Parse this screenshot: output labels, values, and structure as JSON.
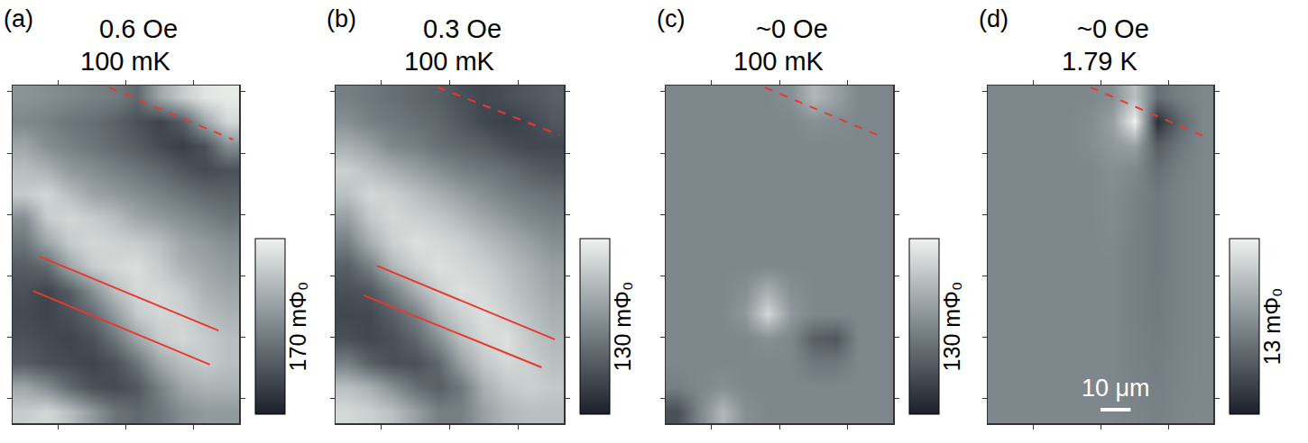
{
  "chart_data": [
    {
      "type": "heatmap",
      "panel": "(a)",
      "title": "0.6 Oe",
      "subtitle": "100 mK",
      "x": [
        3.75,
        11.25,
        18.75,
        26.25,
        33.75,
        41.25,
        48.75,
        56.25,
        63.75,
        71.25
      ],
      "y": [
        3.93,
        11.79,
        19.64,
        27.5,
        35.36,
        43.21,
        51.07,
        58.93,
        66.79,
        74.64,
        82.5,
        90.36,
        98.21,
        106.07
      ],
      "z": [
        [
          140,
          150,
          130,
          100,
          70,
          60,
          70,
          90,
          100,
          100
        ],
        [
          110,
          90,
          60,
          40,
          35,
          45,
          80,
          110,
          120,
          120
        ],
        [
          50,
          40,
          35,
          30,
          40,
          70,
          110,
          130,
          140,
          130
        ],
        [
          40,
          35,
          30,
          40,
          70,
          110,
          140,
          150,
          140,
          130
        ],
        [
          35,
          30,
          40,
          60,
          100,
          140,
          150,
          145,
          130,
          120
        ],
        [
          40,
          30,
          50,
          90,
          130,
          150,
          150,
          140,
          120,
          110
        ],
        [
          50,
          60,
          110,
          140,
          150,
          155,
          140,
          120,
          110,
          100
        ],
        [
          70,
          110,
          140,
          150,
          145,
          140,
          130,
          110,
          100,
          90
        ],
        [
          90,
          140,
          150,
          140,
          130,
          110,
          100,
          90,
          80,
          70
        ],
        [
          140,
          150,
          130,
          110,
          100,
          90,
          80,
          70,
          60,
          55
        ],
        [
          130,
          120,
          100,
          90,
          80,
          70,
          60,
          45,
          35,
          40
        ],
        [
          110,
          90,
          80,
          70,
          60,
          50,
          35,
          25,
          40,
          90
        ],
        [
          85,
          80,
          70,
          65,
          55,
          40,
          30,
          50,
          110,
          150
        ],
        [
          95,
          90,
          85,
          80,
          75,
          60,
          110,
          140,
          160,
          165
        ]
      ],
      "zlim": [
        0,
        170
      ],
      "colorbar_label": "170 mΦ₀",
      "colors": [
        "#1c2029",
        "#7d878c",
        "#eef1ee"
      ],
      "xlim": [
        0,
        75
      ],
      "ylim": [
        0,
        110
      ],
      "xticks": [
        15,
        37.5,
        60
      ],
      "yticks": [
        8,
        28,
        48,
        68,
        88,
        108
      ],
      "tick_labels": false,
      "guides": [
        {
          "x": [
            32,
            73
          ],
          "y": [
            109.4,
            92.4
          ],
          "color": "#e8382f",
          "line_style": "dashed"
        },
        {
          "x": [
            8.9,
            68.2
          ],
          "y": [
            54.3,
            30.2
          ],
          "color": "#e8382f",
          "line_style": "solid"
        },
        {
          "x": [
            6.8,
            65.3
          ],
          "y": [
            43.1,
            19.1
          ],
          "color": "#e8382f",
          "line_style": "solid"
        }
      ]
    },
    {
      "type": "heatmap",
      "panel": "(b)",
      "title": "0.3 Oe",
      "subtitle": "100 mK",
      "x": [
        3.75,
        11.25,
        18.75,
        26.25,
        33.75,
        41.25,
        48.75,
        56.25,
        63.75,
        71.25
      ],
      "y": [
        3.93,
        11.79,
        19.64,
        27.5,
        35.36,
        43.21,
        51.07,
        58.93,
        66.79,
        74.64,
        82.5,
        90.36,
        98.21,
        106.07
      ],
      "z": [
        [
          115,
          110,
          100,
          80,
          60,
          60,
          80,
          95,
          100,
          100
        ],
        [
          100,
          90,
          70,
          50,
          40,
          55,
          90,
          105,
          110,
          105
        ],
        [
          60,
          40,
          30,
          30,
          45,
          80,
          105,
          115,
          110,
          100
        ],
        [
          30,
          25,
          30,
          45,
          70,
          100,
          115,
          120,
          105,
          95
        ],
        [
          25,
          25,
          40,
          60,
          95,
          110,
          120,
          110,
          100,
          90
        ],
        [
          30,
          35,
          60,
          90,
          110,
          120,
          115,
          105,
          95,
          85
        ],
        [
          40,
          60,
          95,
          110,
          120,
          115,
          110,
          100,
          90,
          80
        ],
        [
          60,
          90,
          110,
          120,
          115,
          110,
          100,
          90,
          80,
          70
        ],
        [
          80,
          105,
          115,
          110,
          105,
          95,
          85,
          75,
          65,
          60
        ],
        [
          100,
          115,
          110,
          100,
          90,
          80,
          70,
          60,
          55,
          50
        ],
        [
          110,
          100,
          90,
          80,
          70,
          60,
          55,
          50,
          40,
          35
        ],
        [
          90,
          80,
          65,
          60,
          50,
          45,
          40,
          30,
          25,
          25
        ],
        [
          70,
          60,
          55,
          50,
          45,
          35,
          25,
          20,
          25,
          35
        ],
        [
          60,
          55,
          50,
          45,
          40,
          30,
          25,
          30,
          35,
          40
        ]
      ],
      "zlim": [
        0,
        130
      ],
      "colorbar_label": "130 mΦ₀",
      "colors": [
        "#1c2029",
        "#7d878c",
        "#eef1ee"
      ],
      "xlim": [
        0,
        75
      ],
      "ylim": [
        0,
        110
      ],
      "xticks": [
        15,
        37.5,
        60
      ],
      "yticks": [
        8,
        28,
        48,
        68,
        88,
        108
      ],
      "tick_labels": false,
      "guides": [
        {
          "x": [
            33.5,
            73.6
          ],
          "y": [
            109.5,
            93.9
          ],
          "color": "#e8382f",
          "line_style": "dashed"
        },
        {
          "x": [
            13.6,
            72
          ],
          "y": [
            51.3,
            27.3
          ],
          "color": "#e8382f",
          "line_style": "solid"
        },
        {
          "x": [
            9.2,
            67.7
          ],
          "y": [
            41.7,
            18.2
          ],
          "color": "#e8382f",
          "line_style": "solid"
        }
      ]
    },
    {
      "type": "heatmap",
      "panel": "(c)",
      "title": "~0 Oe",
      "subtitle": "100 mK",
      "x": [
        3.75,
        11.25,
        18.75,
        26.25,
        33.75,
        41.25,
        48.75,
        56.25,
        63.75,
        71.25
      ],
      "y": [
        3.93,
        11.79,
        19.64,
        27.5,
        35.36,
        43.21,
        51.07,
        58.93,
        66.79,
        74.64,
        82.5,
        90.36,
        98.21,
        106.07
      ],
      "z": [
        [
          30,
          65,
          95,
          70,
          65,
          65,
          65,
          65,
          65,
          65
        ],
        [
          60,
          65,
          70,
          65,
          65,
          65,
          65,
          65,
          65,
          65
        ],
        [
          65,
          65,
          65,
          65,
          65,
          65,
          55,
          55,
          65,
          65
        ],
        [
          65,
          65,
          65,
          65,
          70,
          65,
          40,
          35,
          65,
          65
        ],
        [
          65,
          65,
          65,
          75,
          115,
          75,
          65,
          65,
          65,
          65
        ],
        [
          65,
          65,
          65,
          70,
          90,
          70,
          65,
          65,
          65,
          65
        ],
        [
          65,
          65,
          65,
          65,
          65,
          65,
          65,
          65,
          65,
          65
        ],
        [
          65,
          65,
          65,
          65,
          65,
          65,
          65,
          65,
          65,
          65
        ],
        [
          65,
          65,
          65,
          65,
          65,
          65,
          65,
          65,
          65,
          65
        ],
        [
          65,
          65,
          65,
          65,
          65,
          65,
          65,
          65,
          65,
          65
        ],
        [
          65,
          65,
          65,
          65,
          65,
          65,
          65,
          65,
          65,
          65
        ],
        [
          65,
          65,
          65,
          65,
          65,
          65,
          65,
          65,
          65,
          65
        ],
        [
          65,
          65,
          65,
          65,
          65,
          65,
          70,
          68,
          65,
          65
        ],
        [
          65,
          65,
          65,
          65,
          65,
          70,
          95,
          80,
          65,
          65
        ]
      ],
      "zlim": [
        0,
        130
      ],
      "colorbar_label": "130 mΦ₀",
      "colors": [
        "#1c2029",
        "#7d878c",
        "#eef1ee"
      ],
      "xlim": [
        0,
        75
      ],
      "ylim": [
        0,
        110
      ],
      "xticks": [
        15,
        37.5,
        60
      ],
      "yticks": [
        8,
        28,
        48,
        68,
        88,
        108
      ],
      "tick_labels": false,
      "guides": [
        {
          "x": [
            32.7,
            72
          ],
          "y": [
            109.4,
            93
          ],
          "color": "#e8382f",
          "line_style": "dashed"
        }
      ]
    },
    {
      "type": "heatmap",
      "panel": "(d)",
      "title": "~0 Oe",
      "subtitle": "1.79 K",
      "x": [
        3.75,
        11.25,
        18.75,
        26.25,
        33.75,
        41.25,
        48.75,
        56.25,
        63.75,
        71.25
      ],
      "y": [
        3.93,
        11.79,
        19.64,
        27.5,
        35.36,
        43.21,
        51.07,
        58.93,
        66.79,
        74.64,
        82.5,
        90.36,
        98.21,
        106.07
      ],
      "z": [
        [
          6.5,
          6.5,
          6.5,
          6.5,
          6.5,
          6.5,
          6.3,
          6.1,
          6.4,
          6.5
        ],
        [
          6.5,
          6.5,
          6.5,
          6.5,
          6.5,
          6.5,
          6.2,
          6.0,
          6.3,
          6.5
        ],
        [
          6.5,
          6.5,
          6.5,
          6.5,
          6.5,
          6.5,
          6.1,
          5.9,
          6.3,
          6.5
        ],
        [
          6.5,
          6.5,
          6.5,
          6.5,
          6.5,
          6.5,
          6.1,
          5.8,
          6.2,
          6.5
        ],
        [
          6.5,
          6.5,
          6.5,
          6.5,
          6.5,
          6.5,
          6.0,
          5.7,
          6.2,
          6.5
        ],
        [
          6.5,
          6.5,
          6.5,
          6.5,
          6.5,
          6.5,
          6.0,
          5.7,
          6.2,
          6.5
        ],
        [
          6.5,
          6.5,
          6.5,
          6.5,
          6.5,
          6.5,
          6.0,
          5.6,
          6.2,
          6.5
        ],
        [
          6.5,
          6.5,
          6.5,
          6.5,
          6.5,
          6.6,
          6.0,
          5.6,
          6.2,
          6.5
        ],
        [
          6.5,
          6.5,
          6.5,
          6.5,
          6.5,
          6.7,
          6.1,
          5.6,
          6.2,
          6.5
        ],
        [
          6.5,
          6.5,
          6.5,
          6.5,
          6.5,
          6.8,
          6.2,
          5.6,
          6.2,
          6.5
        ],
        [
          6.5,
          6.5,
          6.5,
          6.5,
          6.5,
          7.0,
          6.5,
          5.0,
          6.0,
          6.5
        ],
        [
          6.5,
          6.5,
          6.5,
          6.5,
          6.8,
          7.5,
          8.0,
          4.0,
          5.5,
          6.5
        ],
        [
          6.5,
          6.5,
          6.5,
          6.5,
          6.8,
          8.0,
          13,
          1.0,
          4.5,
          6.5
        ],
        [
          6.5,
          6.5,
          6.5,
          6.5,
          6.5,
          7.0,
          10,
          5.0,
          6.0,
          6.5
        ]
      ],
      "zlim": [
        0,
        13
      ],
      "colorbar_label": "13 mΦ₀",
      "colors": [
        "#1c2029",
        "#7d878c",
        "#eef1ee"
      ],
      "xlim": [
        0,
        75
      ],
      "ylim": [
        0,
        110
      ],
      "xticks": [
        15,
        37.5,
        60
      ],
      "yticks": [
        8,
        28,
        48,
        68,
        88,
        108
      ],
      "tick_labels": false,
      "guides": [
        {
          "x": [
            34.2,
            72.9
          ],
          "y": [
            109.4,
            93
          ],
          "color": "#e8382f",
          "line_style": "dashed"
        }
      ],
      "scale_bar": {
        "length": 10,
        "label": "10 μm",
        "color": "#ffffff"
      }
    }
  ]
}
